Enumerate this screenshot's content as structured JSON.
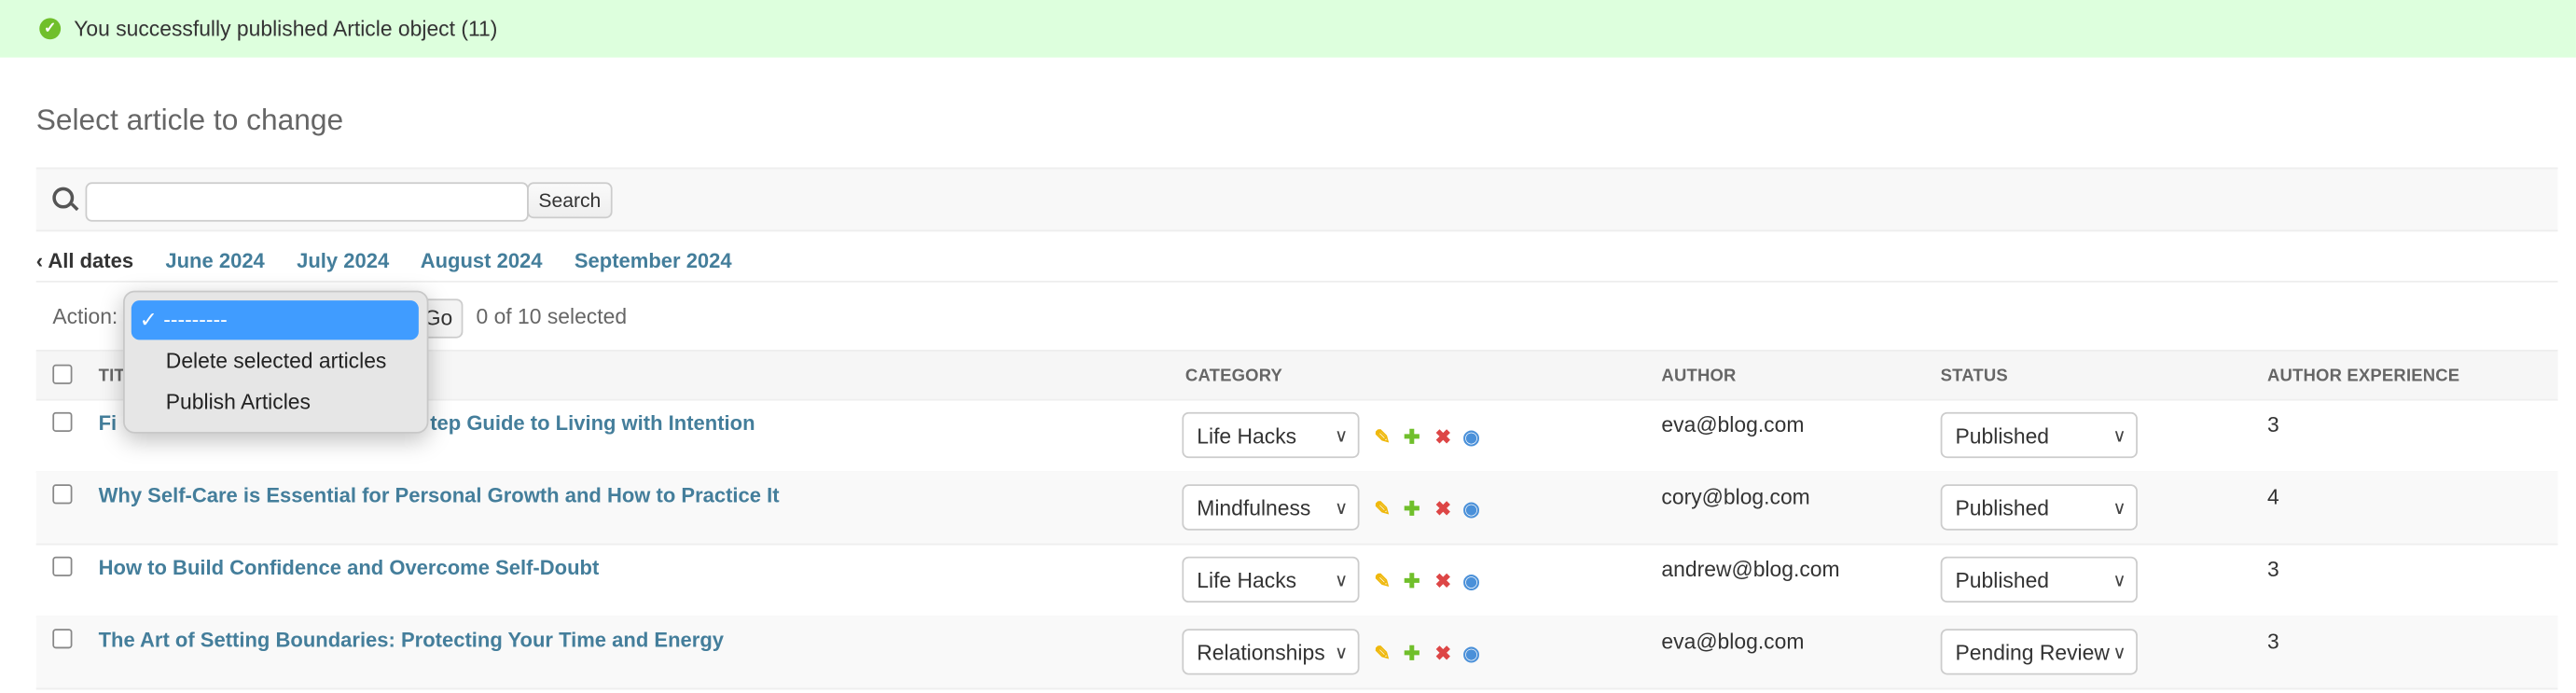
{
  "message": {
    "text": "You successfully published Article object (11)",
    "icon": "check-circle-icon",
    "color": "#70bf2b"
  },
  "page_title": "Select article to change",
  "search": {
    "value": "",
    "placeholder": "",
    "button": "Search"
  },
  "date_filter": [
    "‹ All dates",
    "June 2024",
    "July 2024",
    "August 2024",
    "September 2024"
  ],
  "actions": {
    "label": "Action:",
    "go": "Go",
    "counter": "0 of 10 selected",
    "options": [
      "---------",
      "Delete selected articles",
      "Publish Articles"
    ],
    "selected_index": 0
  },
  "columns": [
    "TITLE",
    "CATEGORY",
    "AUTHOR",
    "STATUS",
    "AUTHOR EXPERIENCE"
  ],
  "rows": [
    {
      "title_start": "Fi",
      "title_end": "tep Guide to Living with Intention",
      "category": "Life Hacks",
      "author": "eva@blog.com",
      "status": "Published",
      "experience": "3"
    },
    {
      "title": "Why Self-Care is Essential for Personal Growth and How to Practice It",
      "category": "Mindfulness",
      "author": "cory@blog.com",
      "status": "Published",
      "experience": "4"
    },
    {
      "title": "How to Build Confidence and Overcome Self-Doubt",
      "category": "Life Hacks",
      "author": "andrew@blog.com",
      "status": "Published",
      "experience": "3"
    },
    {
      "title": "The Art of Setting Boundaries: Protecting Your Time and Energy",
      "category": "Relationships",
      "author": "eva@blog.com",
      "status": "Pending Review",
      "experience": "3"
    }
  ],
  "colors": {
    "link": "#447e9b",
    "banner": "#ddffdd",
    "selected_option": "#409cff",
    "edit": "#efb80b",
    "add": "#70bf2b",
    "delete": "#dd4646",
    "view": "#4a90d9"
  }
}
